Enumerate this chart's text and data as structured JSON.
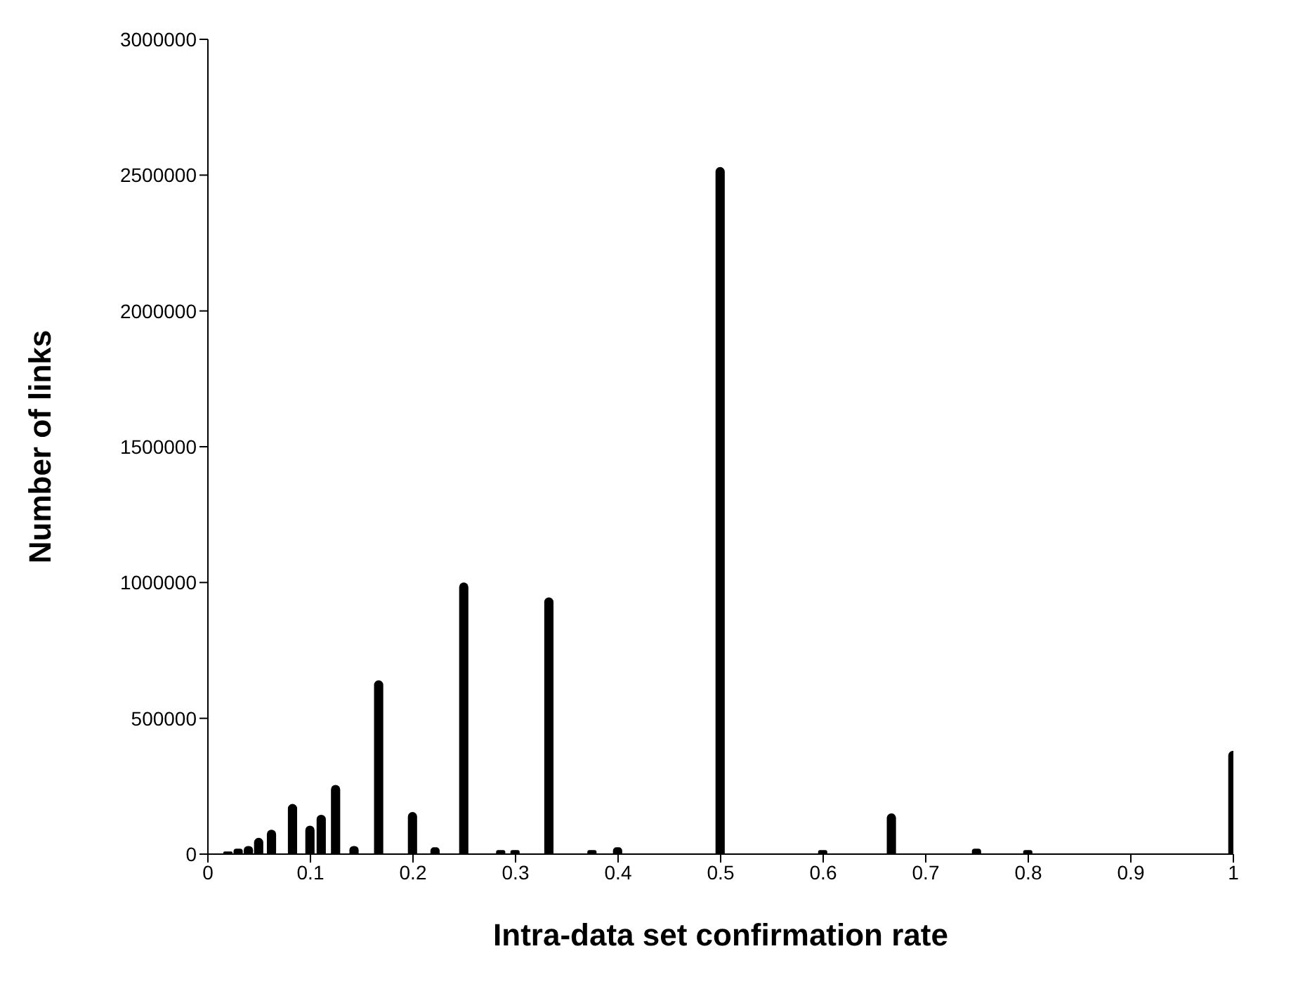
{
  "chart_data": {
    "type": "bar",
    "xlabel": "Intra-data set confirmation rate",
    "ylabel": "Number of links",
    "x": [
      0.02,
      0.03,
      0.04,
      0.05,
      0.0625,
      0.083,
      0.1,
      0.111,
      0.125,
      0.143,
      0.167,
      0.2,
      0.222,
      0.25,
      0.286,
      0.3,
      0.333,
      0.375,
      0.4,
      0.5,
      0.6,
      0.667,
      0.75,
      0.8,
      1
    ],
    "series": [
      {
        "color": "#000000",
        "values": [
          10000,
          20000,
          30000,
          60000,
          90000,
          185000,
          105000,
          145000,
          255000,
          30000,
          640000,
          155000,
          25000,
          1000000,
          15000,
          15000,
          945000,
          15000,
          25000,
          2530000,
          15000,
          150000,
          20000,
          15000,
          380000
        ]
      }
    ],
    "xlim": [
      0,
      1
    ],
    "xticks": [
      0,
      0.1,
      0.2,
      0.3,
      0.4,
      0.5,
      0.6,
      0.7,
      0.8,
      0.9,
      1
    ],
    "ylim": [
      0,
      3000000
    ],
    "yticks": [
      0,
      500000,
      1000000,
      1500000,
      2000000,
      2500000,
      3000000
    ],
    "grid": false,
    "legend": false
  }
}
